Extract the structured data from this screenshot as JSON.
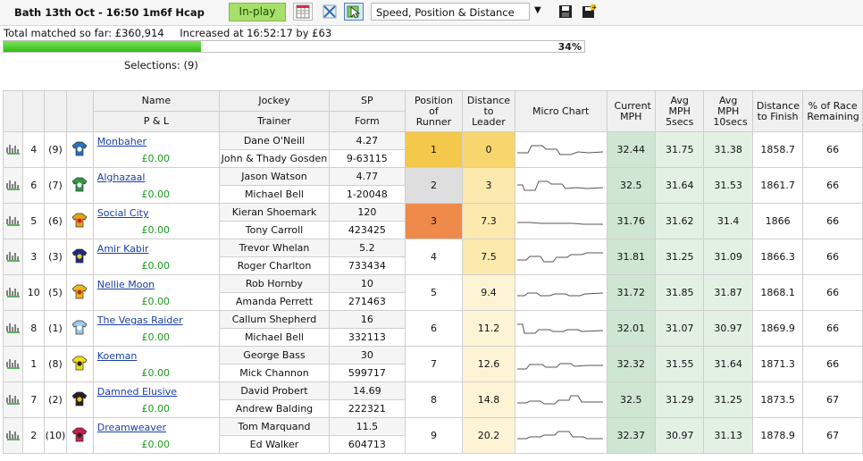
{
  "header": {
    "race_title": "Bath 13th Oct - 16:50 1m6f Hcap",
    "inplay_label": "In-play",
    "view_select": "Speed, Position & Distance",
    "total_matched": "Total matched so far: £360,914",
    "increased": "Increased at 16:52:17 by £63",
    "progress_pct": 34,
    "progress_label": "34%",
    "selections": "Selections: (9)"
  },
  "columns": {
    "name": "Name",
    "pl": "P & L",
    "jockey": "Jockey",
    "trainer": "Trainer",
    "sp": "SP",
    "form": "Form",
    "position": "Position of Runner",
    "distance_leader": "Distance to Leader",
    "micro_chart": "Micro Chart",
    "current_mph": "Current MPH",
    "avg5": "Avg MPH 5secs",
    "avg10": "Avg MPH 10secs",
    "dist_finish": "Distance to Finish",
    "remaining": "% of Race Remaining"
  },
  "runners": [
    {
      "num": "4",
      "draw": "(9)",
      "name": "Monbaher",
      "pl": "£0.00",
      "jockey": "Dane O'Neill",
      "trainer": "John & Thady Gosden",
      "sp": "4.27",
      "form": "9-63115",
      "pos": "1",
      "dtl": "0",
      "cur": "32.44",
      "avg5": "31.75",
      "avg10": "31.38",
      "dtf": "1858.7",
      "rem": "66",
      "silk": "#2a6fb8",
      "silk2": "#ffffff"
    },
    {
      "num": "6",
      "draw": "(7)",
      "name": "Alghazaal",
      "pl": "£0.00",
      "jockey": "Jason Watson",
      "trainer": "Michael Bell",
      "sp": "4.77",
      "form": "1-20048",
      "pos": "2",
      "dtl": "3",
      "cur": "32.5",
      "avg5": "31.64",
      "avg10": "31.53",
      "dtf": "1861.7",
      "rem": "66",
      "silk": "#2e9a46",
      "silk2": "#ffffff"
    },
    {
      "num": "5",
      "draw": "(6)",
      "name": "Social City",
      "pl": "£0.00",
      "jockey": "Kieran Shoemark",
      "trainer": "Tony Carroll",
      "sp": "120",
      "form": "423425",
      "pos": "3",
      "dtl": "7.3",
      "cur": "31.76",
      "avg5": "31.62",
      "avg10": "31.4",
      "dtf": "1866",
      "rem": "66",
      "silk": "#e8a215",
      "silk2": "#d01c1c"
    },
    {
      "num": "3",
      "draw": "(3)",
      "name": "Amir Kabir",
      "pl": "£0.00",
      "jockey": "Trevor Whelan",
      "trainer": "Roger Charlton",
      "sp": "5.2",
      "form": "733434",
      "pos": "4",
      "dtl": "7.5",
      "cur": "31.81",
      "avg5": "31.25",
      "avg10": "31.09",
      "dtf": "1866.3",
      "rem": "66",
      "silk": "#1a2c86",
      "silk2": "#f2d21a"
    },
    {
      "num": "10",
      "draw": "(5)",
      "name": "Nellie Moon",
      "pl": "£0.00",
      "jockey": "Rob Hornby",
      "trainer": "Amanda Perrett",
      "sp": "10",
      "form": "271463",
      "pos": "5",
      "dtl": "9.4",
      "cur": "31.72",
      "avg5": "31.85",
      "avg10": "31.87",
      "dtf": "1868.1",
      "rem": "66",
      "silk": "#e8b91a",
      "silk2": "#d02020"
    },
    {
      "num": "8",
      "draw": "(1)",
      "name": "The Vegas Raider",
      "pl": "£0.00",
      "jockey": "Callum Shepherd",
      "trainer": "Michael Bell",
      "sp": "16",
      "form": "332113",
      "pos": "6",
      "dtl": "11.2",
      "cur": "32.01",
      "avg5": "31.07",
      "avg10": "30.97",
      "dtf": "1869.9",
      "rem": "66",
      "silk": "#9ec8ec",
      "silk2": "#ffffff"
    },
    {
      "num": "1",
      "draw": "(8)",
      "name": "Koeman",
      "pl": "£0.00",
      "jockey": "George Bass",
      "trainer": "Mick Channon",
      "sp": "30",
      "form": "599717",
      "pos": "7",
      "dtl": "12.6",
      "cur": "32.32",
      "avg5": "31.55",
      "avg10": "31.64",
      "dtf": "1871.3",
      "rem": "66",
      "silk": "#f0dc1a",
      "silk2": "#222222"
    },
    {
      "num": "7",
      "draw": "(2)",
      "name": "Damned Elusive",
      "pl": "£0.00",
      "jockey": "David Probert",
      "trainer": "Andrew Balding",
      "sp": "14.69",
      "form": "222321",
      "pos": "8",
      "dtl": "14.8",
      "cur": "32.5",
      "avg5": "31.29",
      "avg10": "31.25",
      "dtf": "1873.5",
      "rem": "67",
      "silk": "#222222",
      "silk2": "#e8c21a"
    },
    {
      "num": "2",
      "draw": "(10)",
      "name": "Dreamweaver",
      "pl": "£0.00",
      "jockey": "Tom Marquand",
      "trainer": "Ed Walker",
      "sp": "11.5",
      "form": "604713",
      "pos": "9",
      "dtl": "20.2",
      "cur": "32.37",
      "avg5": "30.97",
      "avg10": "31.13",
      "dtf": "1878.9",
      "rem": "67",
      "silk": "#c81e4a",
      "silk2": "#222222"
    }
  ],
  "colors": {
    "pos1": "#f3c84b",
    "pos2": "#dedede",
    "pos3": "#ee8a4a",
    "mph": "#cfe6d3",
    "pl_green": "#1d9a1d",
    "link_blue": "#1a3fa5"
  },
  "icons": [
    "bar-chart-icon",
    "grid-icon",
    "cross-icon",
    "cursor-icon",
    "save-icon",
    "save-all-icon",
    "chevron-down-icon",
    "silk-icon"
  ]
}
